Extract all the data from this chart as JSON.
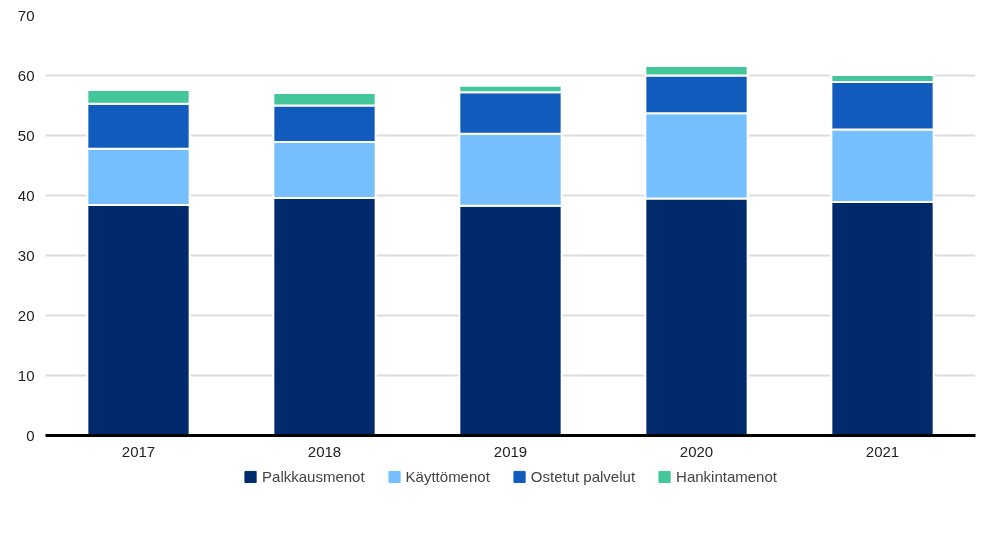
{
  "chart_data": {
    "type": "bar",
    "stacked": true,
    "categories": [
      "2017",
      "2018",
      "2019",
      "2020",
      "2021"
    ],
    "series": [
      {
        "name": "Palkkausmenot",
        "color": "#002a6c",
        "values": [
          38.4,
          39.6,
          38.3,
          39.5,
          38.9
        ]
      },
      {
        "name": "Käyttömenot",
        "color": "#75bfff",
        "values": [
          9.4,
          9.3,
          12.0,
          14.2,
          12.1
        ]
      },
      {
        "name": "Ostetut palvelut",
        "color": "#115bbd",
        "values": [
          7.5,
          6.1,
          6.9,
          6.3,
          7.9
        ]
      },
      {
        "name": "Hankintamenot",
        "color": "#42c69a",
        "values": [
          2.3,
          2.1,
          1.1,
          1.6,
          1.2
        ]
      }
    ],
    "ylim": [
      0,
      70
    ],
    "yticks": [
      0,
      10,
      20,
      30,
      40,
      50,
      60,
      70
    ],
    "grid": "y",
    "legend": "bottom"
  }
}
